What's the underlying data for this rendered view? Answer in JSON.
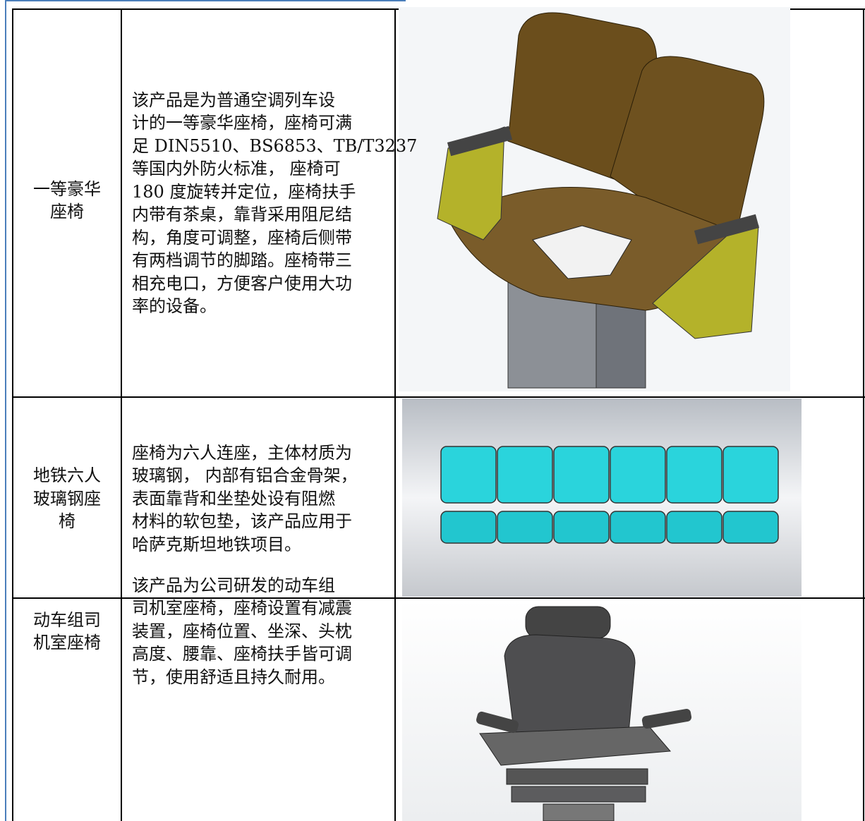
{
  "table": {
    "rows": [
      {
        "name": [
          "一等豪华",
          "座椅"
        ],
        "description": [
          "该产品是为普通空调列车设",
          "计的一等豪华座椅，座椅可满",
          "足 DIN5510、BS6853、TB/T3237",
          "等国内外防火标准， 座椅可",
          "180 度旋转并定位，座椅扶手",
          "内带有茶桌，靠背采用阻尼结",
          "构，角度可调整，座椅后侧带",
          "有两档调节的脚踏。座椅带三",
          "相充电口，方便客户使用大功",
          "率的设备。"
        ]
      },
      {
        "name": [
          "地铁六人",
          "玻璃钢座",
          "椅"
        ],
        "description": [
          "座椅为六人连座，主体材质为",
          "玻璃钢， 内部有铝合金骨架，",
          "表面靠背和坐垫处设有阻燃",
          "材料的软包垫，该产品应用于",
          "哈萨克斯坦地铁项目。"
        ]
      },
      {
        "name": [
          "动车组司",
          "机室座椅"
        ],
        "description": [
          "该产品为公司研发的动车组",
          "司机室座椅，座椅设置有减震",
          "装置，座椅位置、坐深、头枕",
          "高度、腰靠、座椅扶手皆可调",
          "节，使用舒适且持久耐用。"
        ]
      }
    ]
  }
}
